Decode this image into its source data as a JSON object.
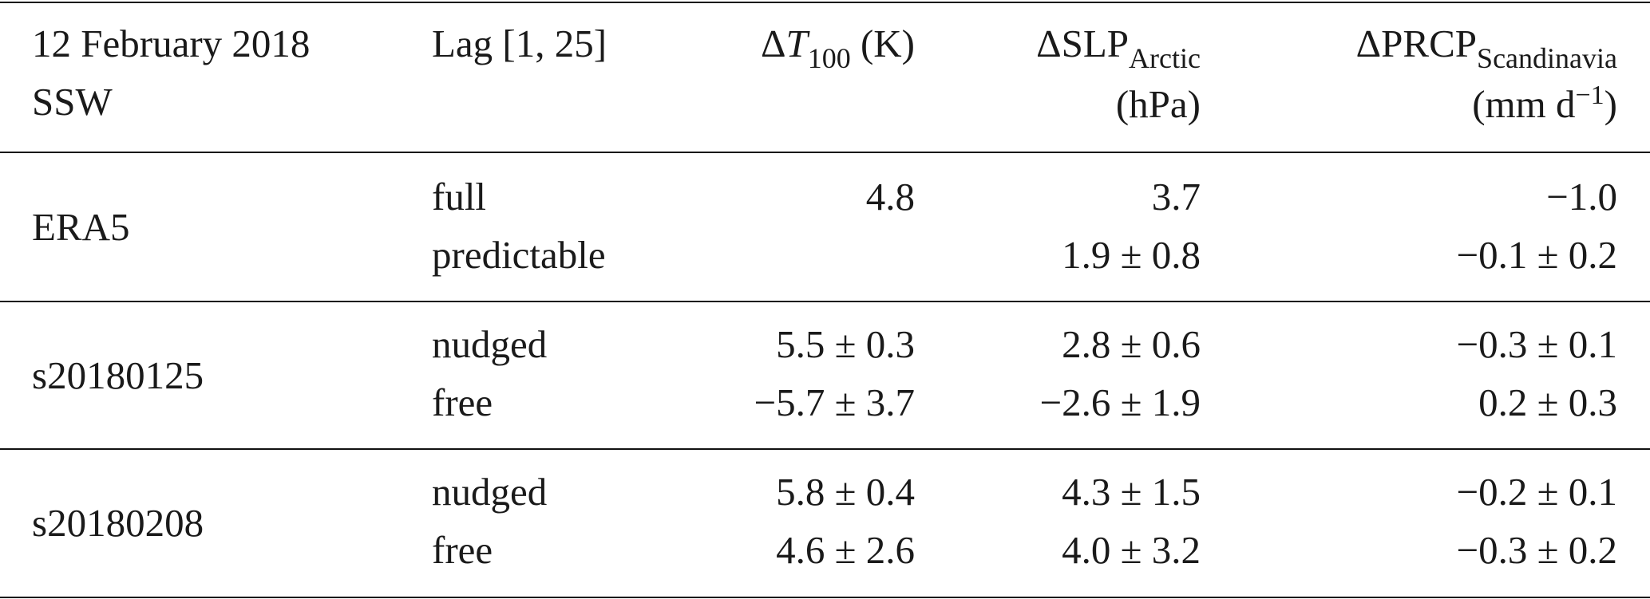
{
  "header": {
    "col1": [
      "12 February 2018",
      "SSW"
    ],
    "col2": "Lag [1, 25]",
    "col3": {
      "delta": "Δ",
      "var": "T",
      "sub": "100",
      "unit": " (K)"
    },
    "col4": {
      "delta": "Δ",
      "var": "SLP",
      "sub": "Arctic",
      "unit": "(hPa)"
    },
    "col5": {
      "delta": "Δ",
      "var": "PRCP",
      "sub": "Scandinavia",
      "unit_pre": "(mm d",
      "unit_sup": "−1",
      "unit_post": ")"
    }
  },
  "groups": [
    {
      "name": "ERA5",
      "rows": [
        {
          "lag": "full",
          "t100": "4.8",
          "slp": "3.7",
          "prcp": "−1.0"
        },
        {
          "lag": "predictable",
          "t100": "",
          "slp": "1.9 ± 0.8",
          "prcp": "−0.1 ± 0.2"
        }
      ]
    },
    {
      "name": "s20180125",
      "rows": [
        {
          "lag": "nudged",
          "t100": "5.5 ± 0.3",
          "slp": "2.8 ± 0.6",
          "prcp": "−0.3 ± 0.1"
        },
        {
          "lag": "free",
          "t100": "−5.7 ± 3.7",
          "slp": "−2.6 ± 1.9",
          "prcp": "0.2 ± 0.3"
        }
      ]
    },
    {
      "name": "s20180208",
      "rows": [
        {
          "lag": "nudged",
          "t100": "5.8 ± 0.4",
          "slp": "4.3 ± 1.5",
          "prcp": "−0.2 ± 0.1"
        },
        {
          "lag": "free",
          "t100": "4.6 ± 2.6",
          "slp": "4.0 ± 3.2",
          "prcp": "−0.3 ± 0.2"
        }
      ]
    }
  ]
}
